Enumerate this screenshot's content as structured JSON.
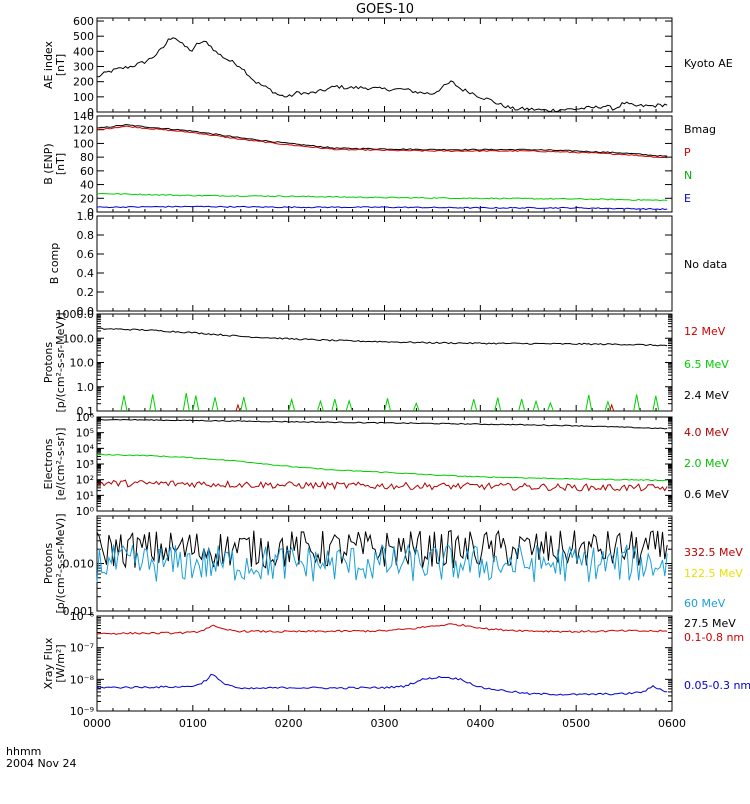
{
  "title": "GOES-10",
  "time_axis": {
    "label": "hhmm",
    "date": "2004 Nov 24",
    "ticks": [
      "0000",
      "0100",
      "0200",
      "0300",
      "0400",
      "0500",
      "0600"
    ]
  },
  "chart_data": [
    {
      "id": "ae",
      "type": "line",
      "ylabel_lines": [
        "AE index",
        "[nT]"
      ],
      "scale": "linear",
      "ylim": [
        0,
        620
      ],
      "yticks": [
        0,
        100,
        200,
        300,
        400,
        500,
        600
      ],
      "ytick_labels": [
        "0",
        "100",
        "200",
        "300",
        "400",
        "500",
        "600"
      ],
      "series": [
        {
          "name": "Kyoto AE",
          "color": "#000000",
          "points": [
            [
              0,
              230
            ],
            [
              0.1,
              260
            ],
            [
              0.2,
              280
            ],
            [
              0.35,
              300
            ],
            [
              0.5,
              330
            ],
            [
              0.6,
              370
            ],
            [
              0.7,
              430
            ],
            [
              0.75,
              480
            ],
            [
              0.8,
              500
            ],
            [
              0.9,
              440
            ],
            [
              1.0,
              400
            ],
            [
              1.05,
              455
            ],
            [
              1.15,
              460
            ],
            [
              1.25,
              390
            ],
            [
              1.35,
              350
            ],
            [
              1.5,
              300
            ],
            [
              1.65,
              200
            ],
            [
              1.8,
              150
            ],
            [
              1.9,
              110
            ],
            [
              2.0,
              100
            ],
            [
              2.1,
              130
            ],
            [
              2.2,
              120
            ],
            [
              2.35,
              140
            ],
            [
              2.5,
              170
            ],
            [
              2.6,
              160
            ],
            [
              2.8,
              160
            ],
            [
              3.0,
              150
            ],
            [
              3.2,
              150
            ],
            [
              3.35,
              130
            ],
            [
              3.5,
              120
            ],
            [
              3.6,
              160
            ],
            [
              3.7,
              200
            ],
            [
              3.8,
              150
            ],
            [
              3.9,
              130
            ],
            [
              4.0,
              100
            ],
            [
              4.1,
              80
            ],
            [
              4.2,
              50
            ],
            [
              4.35,
              20
            ],
            [
              4.5,
              20
            ],
            [
              4.7,
              10
            ],
            [
              5.0,
              20
            ],
            [
              5.2,
              30
            ],
            [
              5.3,
              40
            ],
            [
              5.4,
              20
            ],
            [
              5.5,
              60
            ],
            [
              5.6,
              40
            ],
            [
              5.8,
              40
            ],
            [
              5.95,
              50
            ]
          ]
        }
      ],
      "legend": [
        {
          "label": "Kyoto AE",
          "color": "#000000"
        }
      ]
    },
    {
      "id": "bmag",
      "type": "line",
      "ylabel_lines": [
        "B (ENP)",
        "[nT]"
      ],
      "scale": "linear",
      "ylim": [
        0,
        140
      ],
      "yticks": [
        0,
        20,
        40,
        60,
        80,
        100,
        120,
        140
      ],
      "ytick_labels": [
        "0",
        "20",
        "40",
        "60",
        "80",
        "100",
        "120",
        "140"
      ],
      "series": [
        {
          "name": "Bmag",
          "color": "#000000",
          "points": [
            [
              0,
              122
            ],
            [
              0.3,
              127
            ],
            [
              0.6,
              123
            ],
            [
              1.0,
              118
            ],
            [
              1.5,
              108
            ],
            [
              2.0,
              100
            ],
            [
              2.5,
              93
            ],
            [
              3.0,
              92
            ],
            [
              3.5,
              91
            ],
            [
              4.0,
              91
            ],
            [
              4.5,
              91
            ],
            [
              5.0,
              89
            ],
            [
              5.5,
              86
            ],
            [
              5.95,
              81
            ]
          ]
        },
        {
          "name": "P",
          "color": "#d00000",
          "points": [
            [
              0,
              120
            ],
            [
              0.3,
              125
            ],
            [
              0.6,
              121
            ],
            [
              1.0,
              116
            ],
            [
              1.5,
              106
            ],
            [
              2.0,
              98
            ],
            [
              2.5,
              91
            ],
            [
              3.0,
              90
            ],
            [
              3.5,
              89
            ],
            [
              4.0,
              89
            ],
            [
              4.5,
              89
            ],
            [
              5.0,
              87
            ],
            [
              5.5,
              84
            ],
            [
              5.95,
              79
            ]
          ]
        },
        {
          "name": "N",
          "color": "#00d000",
          "points": [
            [
              0,
              27
            ],
            [
              1.0,
              24
            ],
            [
              2.0,
              23
            ],
            [
              3.0,
              21
            ],
            [
              4.0,
              20
            ],
            [
              5.0,
              19
            ],
            [
              5.95,
              17
            ]
          ]
        },
        {
          "name": "E",
          "color": "#0000d0",
          "points": [
            [
              0,
              7
            ],
            [
              1.0,
              8
            ],
            [
              2.0,
              7
            ],
            [
              3.0,
              7
            ],
            [
              4.0,
              6
            ],
            [
              5.0,
              6
            ],
            [
              5.95,
              4
            ]
          ]
        }
      ],
      "legend": [
        {
          "label": "Bmag",
          "color": "#000000"
        },
        {
          "label": "P",
          "color": "#d00000"
        },
        {
          "label": "N",
          "color": "#00b000"
        },
        {
          "label": "E",
          "color": "#0000d0"
        }
      ]
    },
    {
      "id": "bcomp",
      "type": "line",
      "ylabel_lines": [
        "B comp"
      ],
      "scale": "linear",
      "ylim": [
        0,
        1
      ],
      "yticks": [
        0,
        0.2,
        0.4,
        0.6,
        0.8,
        1.0
      ],
      "ytick_labels": [
        "0.0",
        "0.2",
        "0.4",
        "0.6",
        "0.8",
        "1.0"
      ],
      "series": [],
      "legend": [
        {
          "label": "No data",
          "color": "#000000"
        }
      ]
    },
    {
      "id": "protons_low",
      "type": "line",
      "ylabel_lines": [
        "Protons",
        "[p/(cm²-s-sr-MeV)]"
      ],
      "scale": "log",
      "ylim": [
        0.1,
        1000
      ],
      "yticks": [
        0.1,
        1,
        10,
        100,
        1000
      ],
      "ytick_labels": [
        "0.1",
        "1.0",
        "10.0",
        "100.0",
        "1000.0"
      ],
      "series": [
        {
          "name": "2.4 MeV",
          "color": "#000000",
          "points": [
            [
              0,
              250
            ],
            [
              0.5,
              220
            ],
            [
              1.0,
              170
            ],
            [
              1.5,
              120
            ],
            [
              2.0,
              95
            ],
            [
              2.5,
              80
            ],
            [
              3.0,
              72
            ],
            [
              3.5,
              65
            ],
            [
              4.0,
              62
            ],
            [
              4.5,
              60
            ],
            [
              5.0,
              58
            ],
            [
              5.5,
              56
            ],
            [
              5.95,
              50
            ]
          ]
        }
      ],
      "legend": [
        {
          "label": "12 MeV",
          "color": "#d00000"
        },
        {
          "label": "6.5 MeV",
          "color": "#00d000"
        },
        {
          "label": "2.4 MeV",
          "color": "#000000"
        }
      ]
    },
    {
      "id": "electrons",
      "type": "line",
      "ylabel_lines": [
        "Electrons",
        "[e/(cm²-s-sr)]"
      ],
      "scale": "log",
      "ylim": [
        1,
        1000000
      ],
      "yticks": [
        1,
        10,
        100,
        1000,
        10000,
        100000,
        1000000
      ],
      "ytick_labels": [
        "10⁰",
        "10¹",
        "10²",
        "10³",
        "10⁴",
        "10⁵",
        "10⁶"
      ],
      "series": [
        {
          "name": "0.6 MeV",
          "color": "#000000",
          "points": [
            [
              0,
              700000
            ],
            [
              1.0,
              600000
            ],
            [
              2.0,
              500000
            ],
            [
              3.0,
              420000
            ],
            [
              4.0,
              350000
            ],
            [
              5.0,
              280000
            ],
            [
              5.95,
              180000
            ]
          ]
        },
        {
          "name": "2.0 MeV",
          "color": "#00d000",
          "points": [
            [
              0,
              4000
            ],
            [
              0.5,
              3500
            ],
            [
              1.0,
              2500
            ],
            [
              1.5,
              1500
            ],
            [
              2.0,
              700
            ],
            [
              2.5,
              400
            ],
            [
              3.0,
              300
            ],
            [
              3.5,
              200
            ],
            [
              4.0,
              150
            ],
            [
              4.5,
              130
            ],
            [
              5.0,
              110
            ],
            [
              5.5,
              100
            ],
            [
              5.95,
              90
            ]
          ]
        },
        {
          "name": "4.0 MeV",
          "color": "#b00000",
          "points": [
            [
              0,
              60
            ],
            [
              1.0,
              55
            ],
            [
              2.0,
              45
            ],
            [
              3.0,
              40
            ],
            [
              4.0,
              38
            ],
            [
              5.0,
              32
            ],
            [
              5.95,
              30
            ]
          ]
        }
      ],
      "legend": [
        {
          "label": "4.0 MeV",
          "color": "#b00000"
        },
        {
          "label": "2.0 MeV",
          "color": "#00c000"
        },
        {
          "label": "0.6 MeV",
          "color": "#000000"
        }
      ]
    },
    {
      "id": "protons_high",
      "type": "line",
      "ylabel_lines": [
        "Protons",
        "[p/(cm²-s-sr-MeV)]"
      ],
      "scale": "log",
      "ylim": [
        0.001,
        0.1
      ],
      "yticks": [
        0.001,
        0.01
      ],
      "ytick_labels": [
        "0.001",
        "0.010"
      ],
      "series": [
        {
          "name": "27.5 MeV",
          "color": "#000000",
          "points": [
            [
              0,
              0.02
            ],
            [
              5.95,
              0.02
            ]
          ]
        },
        {
          "name": "60 MeV",
          "color": "#1a9fd8",
          "points": [
            [
              0,
              0.01
            ],
            [
              5.95,
              0.01
            ]
          ]
        }
      ],
      "legend": [
        {
          "label": "332.5 MeV",
          "color": "#c00000"
        },
        {
          "label": "122.5 MeV",
          "color": "#e8e000"
        },
        {
          "label": "60 MeV",
          "color": "#1a9fd8"
        },
        {
          "label": "27.5 MeV",
          "color": "#000000"
        }
      ]
    },
    {
      "id": "xray",
      "type": "line",
      "ylabel_lines": [
        "Xray Flux",
        "[W/m²]"
      ],
      "scale": "log",
      "ylim": [
        1e-09,
        1e-06
      ],
      "yticks": [
        1e-09,
        1e-08,
        1e-07,
        1e-06
      ],
      "ytick_labels": [
        "10⁻⁹",
        "10⁻⁸",
        "10⁻⁷",
        "10⁻⁶"
      ],
      "series": [
        {
          "name": "0.1-0.8 nm",
          "color": "#d00000",
          "points": [
            [
              0,
              2.8e-07
            ],
            [
              0.8,
              2.9e-07
            ],
            [
              1.0,
              3e-07
            ],
            [
              1.1,
              3.5e-07
            ],
            [
              1.2,
              5e-07
            ],
            [
              1.3,
              3.8e-07
            ],
            [
              1.5,
              3.3e-07
            ],
            [
              2.0,
              3.2e-07
            ],
            [
              2.5,
              3.3e-07
            ],
            [
              3.0,
              3.4e-07
            ],
            [
              3.3,
              4e-07
            ],
            [
              3.5,
              4.8e-07
            ],
            [
              3.7,
              5.5e-07
            ],
            [
              3.9,
              4.8e-07
            ],
            [
              4.1,
              3.8e-07
            ],
            [
              4.5,
              3.4e-07
            ],
            [
              5.0,
              3.2e-07
            ],
            [
              5.5,
              3.4e-07
            ],
            [
              5.95,
              3.3e-07
            ]
          ]
        },
        {
          "name": "0.05-0.3 nm",
          "color": "#0000d0",
          "points": [
            [
              0,
              5.5e-09
            ],
            [
              0.9,
              5.8e-09
            ],
            [
              1.05,
              6.5e-09
            ],
            [
              1.15,
              1e-08
            ],
            [
              1.2,
              1.5e-08
            ],
            [
              1.3,
              8e-09
            ],
            [
              1.5,
              5e-09
            ],
            [
              2.0,
              5.5e-09
            ],
            [
              2.5,
              5.3e-09
            ],
            [
              3.0,
              5.5e-09
            ],
            [
              3.2,
              6e-09
            ],
            [
              3.4,
              1e-08
            ],
            [
              3.6,
              1.2e-08
            ],
            [
              3.8,
              1e-08
            ],
            [
              4.0,
              5.5e-09
            ],
            [
              4.5,
              3.5e-09
            ],
            [
              5.0,
              3.3e-09
            ],
            [
              5.5,
              3.5e-09
            ],
            [
              5.7,
              4e-09
            ],
            [
              5.8,
              6e-09
            ],
            [
              5.95,
              4e-09
            ]
          ]
        }
      ],
      "legend": [
        {
          "label": "0.1-0.8 nm",
          "color": "#d00000"
        },
        {
          "label": "0.05-0.3 nm",
          "color": "#0000d0"
        }
      ]
    }
  ]
}
